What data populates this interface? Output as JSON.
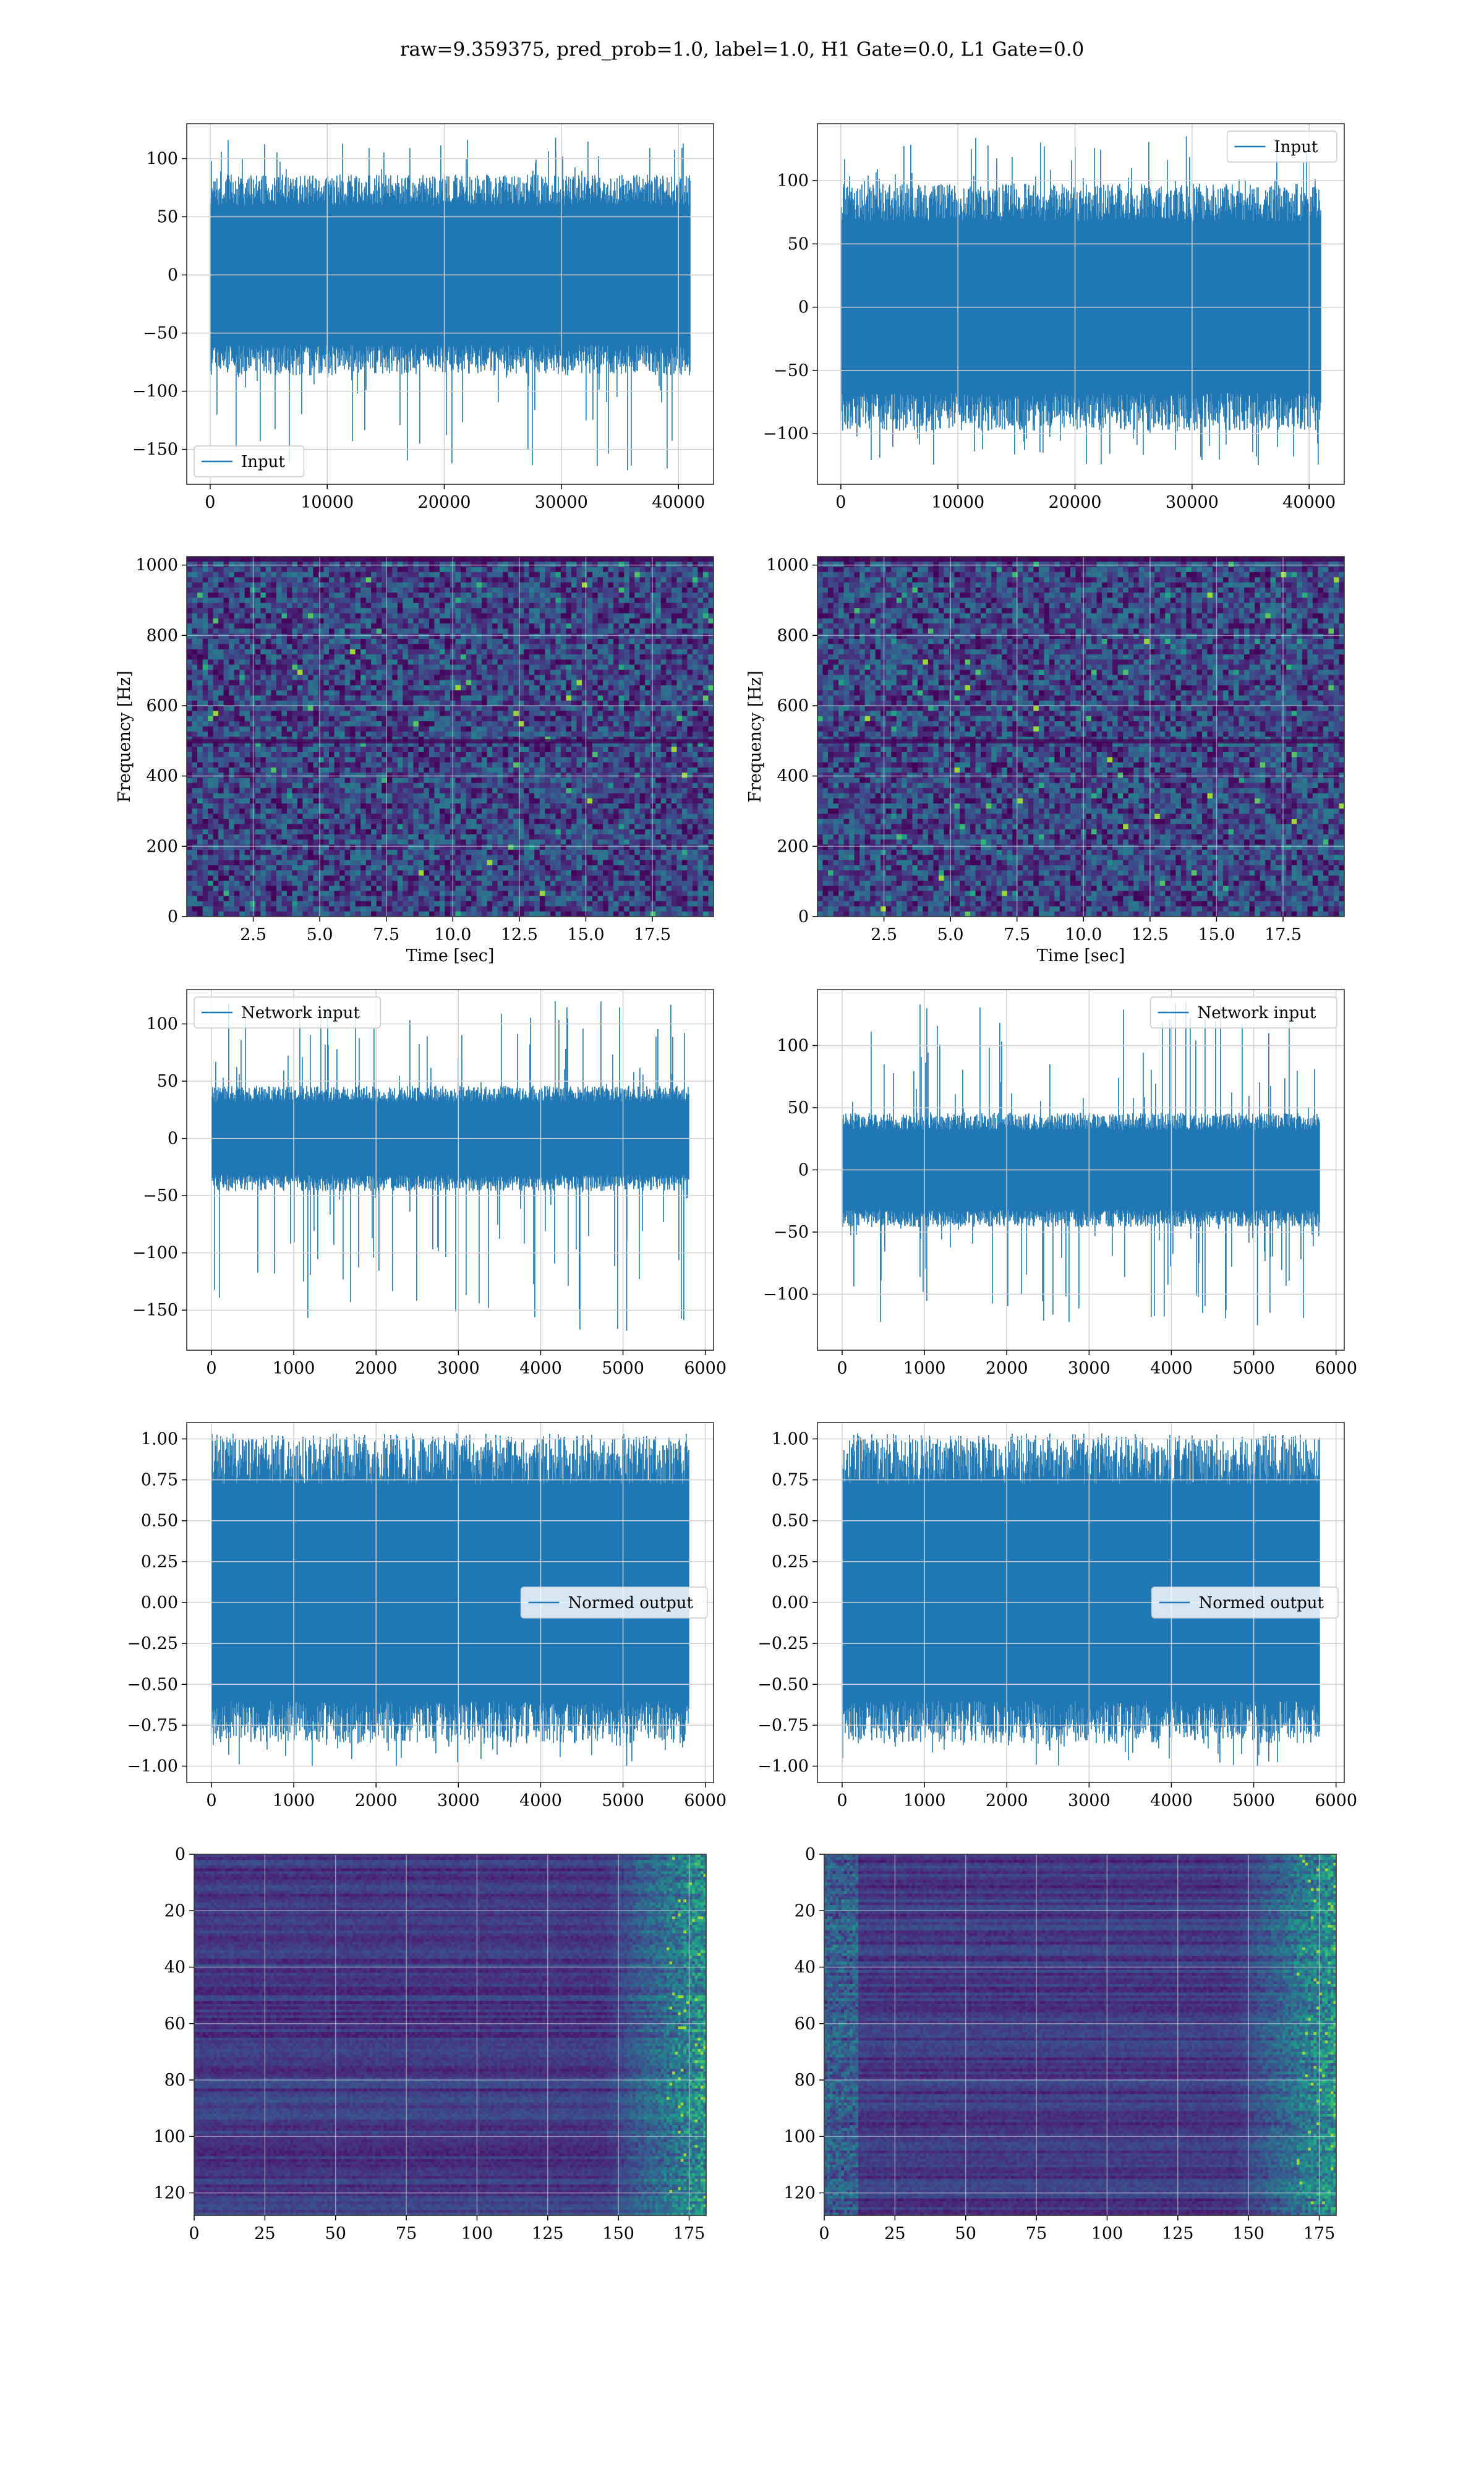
{
  "figure": {
    "title": "raw=9.359375, pred_prob=1.0, label=1.0, H1 Gate=0.0, L1 Gate=0.0"
  },
  "colors": {
    "line": "#1f77b4",
    "grid": "#d0d0d0",
    "viridis_low": "#440154",
    "viridis_mid": "#21918c",
    "viridis_high": "#fde725"
  },
  "chart_data": [
    {
      "id": "r1c1",
      "type": "line",
      "series": [
        {
          "name": "Input"
        }
      ],
      "legend_loc": "lower-left",
      "xlim": [
        -2000,
        43000
      ],
      "ylim": [
        -180,
        130
      ],
      "xticks": [
        0,
        10000,
        20000,
        30000,
        40000
      ],
      "yticks": [
        -150,
        -100,
        -50,
        0,
        50,
        100
      ],
      "x_range": [
        0,
        41000
      ],
      "band": [
        -75,
        75
      ],
      "spike_max": 118,
      "spike_min": -168
    },
    {
      "id": "r1c2",
      "type": "line",
      "series": [
        {
          "name": "Input"
        }
      ],
      "legend_loc": "upper-right",
      "xlim": [
        -2000,
        43000
      ],
      "ylim": [
        -140,
        145
      ],
      "xticks": [
        0,
        10000,
        20000,
        30000,
        40000
      ],
      "yticks": [
        -100,
        -50,
        0,
        50,
        100
      ],
      "x_range": [
        0,
        41000
      ],
      "band": [
        -85,
        85
      ],
      "spike_max": 135,
      "spike_min": -125
    },
    {
      "id": "r2c1",
      "type": "heatmap",
      "xlim": [
        0,
        19.8
      ],
      "ylim": [
        0,
        1024
      ],
      "xticks": [
        2.5,
        5.0,
        7.5,
        10.0,
        12.5,
        15.0,
        17.5
      ],
      "yticks": [
        0,
        200,
        400,
        600,
        800,
        1000
      ],
      "xlabel": "Time [sec]",
      "ylabel": "Frequency [Hz]"
    },
    {
      "id": "r2c2",
      "type": "heatmap",
      "xlim": [
        0,
        19.8
      ],
      "ylim": [
        0,
        1024
      ],
      "xticks": [
        2.5,
        5.0,
        7.5,
        10.0,
        12.5,
        15.0,
        17.5
      ],
      "yticks": [
        0,
        200,
        400,
        600,
        800,
        1000
      ],
      "xlabel": "Time [sec]",
      "ylabel": "Frequency [Hz]"
    },
    {
      "id": "r3c1",
      "type": "line",
      "series": [
        {
          "name": "Network input"
        }
      ],
      "legend_loc": "upper-left",
      "xlim": [
        -300,
        6100
      ],
      "ylim": [
        -185,
        130
      ],
      "xticks": [
        0,
        1000,
        2000,
        3000,
        4000,
        5000,
        6000
      ],
      "yticks": [
        -150,
        -100,
        -50,
        0,
        50,
        100
      ],
      "x_range": [
        0,
        5800
      ],
      "band": [
        -40,
        40
      ],
      "spike_max": 120,
      "spike_min": -168
    },
    {
      "id": "r3c2",
      "type": "line",
      "series": [
        {
          "name": "Network input"
        }
      ],
      "legend_loc": "upper-right",
      "xlim": [
        -300,
        6100
      ],
      "ylim": [
        -145,
        145
      ],
      "xticks": [
        0,
        1000,
        2000,
        3000,
        4000,
        5000,
        6000
      ],
      "yticks": [
        -100,
        -50,
        0,
        50,
        100
      ],
      "x_range": [
        0,
        5800
      ],
      "band": [
        -40,
        40
      ],
      "spike_max": 135,
      "spike_min": -125
    },
    {
      "id": "r4c1",
      "type": "line",
      "series": [
        {
          "name": "Normed output"
        }
      ],
      "legend_loc": "center-right",
      "xlim": [
        -300,
        6100
      ],
      "ylim": [
        -1.1,
        1.1
      ],
      "xticks": [
        0,
        1000,
        2000,
        3000,
        4000,
        5000,
        6000
      ],
      "yticks": [
        -1.0,
        -0.75,
        -0.5,
        -0.25,
        0.0,
        0.25,
        0.5,
        0.75,
        1.0
      ],
      "x_range": [
        0,
        5800
      ],
      "band": [
        -0.75,
        0.9
      ],
      "spike_max": 1.0,
      "spike_min": -1.0
    },
    {
      "id": "r4c2",
      "type": "line",
      "series": [
        {
          "name": "Normed output"
        }
      ],
      "legend_loc": "center-right",
      "xlim": [
        -300,
        6100
      ],
      "ylim": [
        -1.1,
        1.1
      ],
      "xticks": [
        0,
        1000,
        2000,
        3000,
        4000,
        5000,
        6000
      ],
      "yticks": [
        -1.0,
        -0.75,
        -0.5,
        -0.25,
        0.0,
        0.25,
        0.5,
        0.75,
        1.0
      ],
      "x_range": [
        0,
        5800
      ],
      "band": [
        -0.75,
        0.9
      ],
      "spike_max": 1.0,
      "spike_min": -1.0
    },
    {
      "id": "r5c1",
      "type": "heatmap",
      "xlim": [
        0,
        181
      ],
      "ylim": [
        128,
        0
      ],
      "xticks": [
        0,
        25,
        50,
        75,
        100,
        125,
        150,
        175
      ],
      "yticks": [
        0,
        20,
        40,
        60,
        80,
        100,
        120
      ]
    },
    {
      "id": "r5c2",
      "type": "heatmap",
      "xlim": [
        0,
        181
      ],
      "ylim": [
        128,
        0
      ],
      "xticks": [
        0,
        25,
        50,
        75,
        100,
        125,
        150,
        175
      ],
      "yticks": [
        0,
        20,
        40,
        60,
        80,
        100,
        120
      ]
    }
  ]
}
